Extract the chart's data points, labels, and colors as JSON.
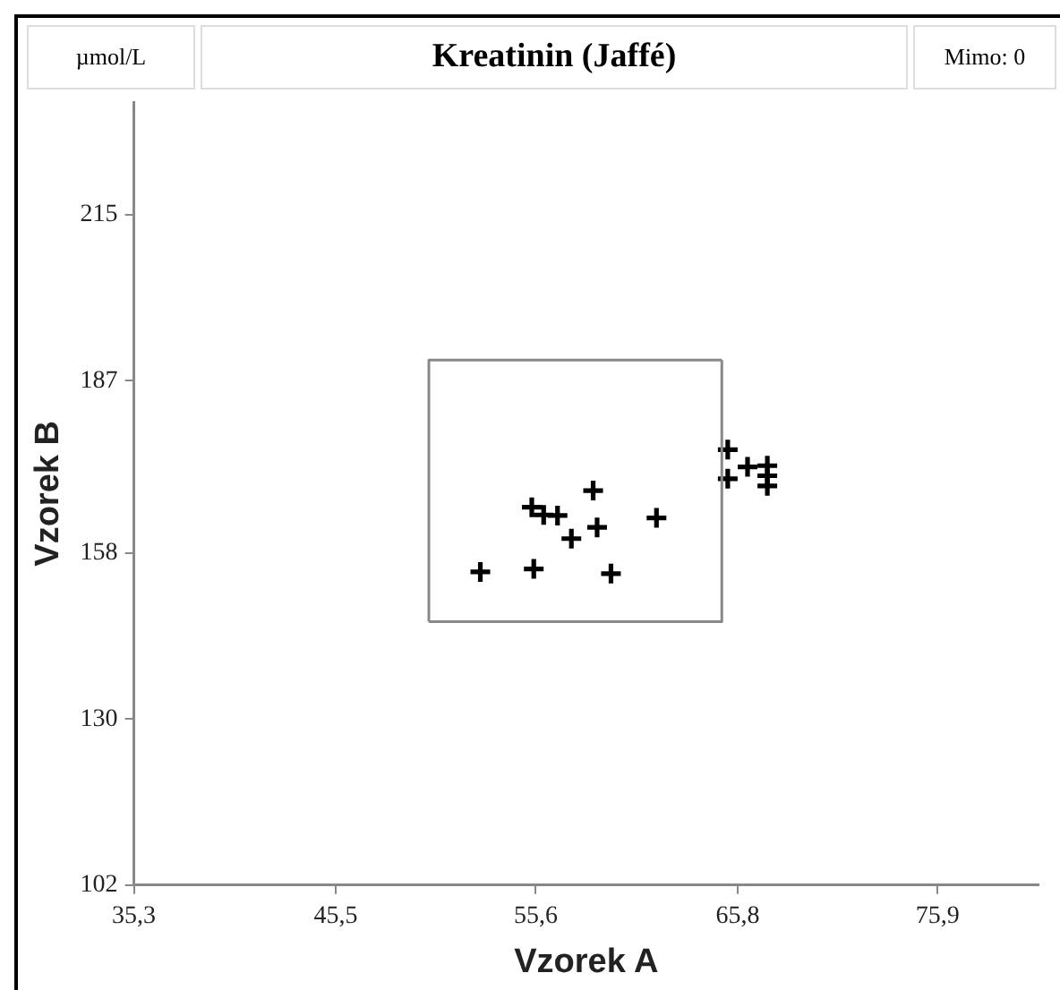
{
  "chart_data": {
    "type": "scatter",
    "title": "Kreatinin (Jaffé)",
    "annotations": [
      "µmol/L",
      "Mimo: 0"
    ],
    "xlabel": "Vzorek A",
    "ylabel": "Vzorek B",
    "xlim": [
      35.3,
      81
    ],
    "ylim": [
      102,
      234
    ],
    "xticks": [
      {
        "value": 35.3,
        "label": "35,3"
      },
      {
        "value": 45.5,
        "label": "45,5"
      },
      {
        "value": 55.6,
        "label": "55,6"
      },
      {
        "value": 65.8,
        "label": "65,8"
      },
      {
        "value": 75.9,
        "label": "75,9"
      }
    ],
    "yticks": [
      102,
      130,
      158,
      187,
      215
    ],
    "grid": false,
    "legend": false,
    "series": [
      {
        "type": "line",
        "color": "#888888",
        "marker": "none",
        "line_style": "solid",
        "x": [
          50.2,
          65.0,
          65.0
        ],
        "values": [
          146.4,
          146.4,
          190.5
        ]
      },
      {
        "type": "line",
        "color": "#888888",
        "marker": "none",
        "line_style": "solid",
        "x": [
          50.2,
          50.2,
          65.0
        ],
        "values": [
          146.4,
          190.5,
          190.5
        ]
      },
      {
        "type": "scatter",
        "color": "#000000",
        "marker": "cross",
        "x": [
          52.8,
          55.5,
          59.4,
          57.4,
          58.7,
          55.4,
          56.0,
          56.7,
          58.5,
          61.7,
          65.3,
          65.3,
          66.3,
          67.3,
          67.3,
          67.3
        ],
        "values": [
          154.8,
          155.3,
          154.5,
          160.4,
          162.3,
          165.7,
          164.4,
          164.3,
          168.5,
          163.9,
          175.4,
          170.5,
          172.5,
          172.7,
          171.0,
          169.3
        ]
      }
    ]
  }
}
